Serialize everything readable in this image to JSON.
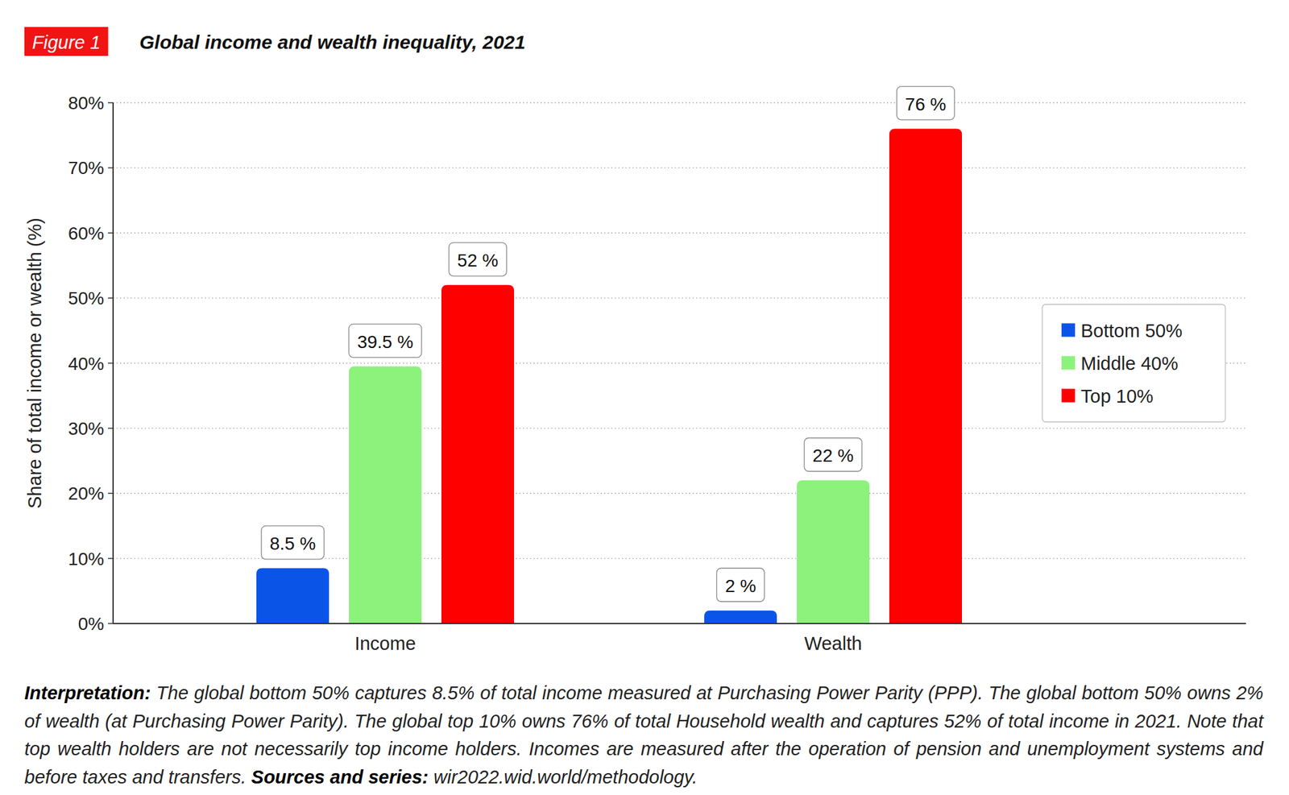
{
  "chart_data": {
    "type": "bar",
    "figure_label": "Figure 1",
    "title": "Global income and wealth inequality, 2021",
    "ylabel": "Share of total income or wealth (%)",
    "categories": [
      "Income",
      "Wealth"
    ],
    "series": [
      {
        "name": "Bottom 50%",
        "color": "#0a55e8",
        "values": [
          8.5,
          2
        ],
        "value_labels": [
          "8.5 %",
          "2 %"
        ]
      },
      {
        "name": "Middle 40%",
        "color": "#8cf27c",
        "values": [
          39.5,
          22
        ],
        "value_labels": [
          "39.5 %",
          "22 %"
        ]
      },
      {
        "name": "Top 10%",
        "color": "#fe0000",
        "values": [
          52,
          76
        ],
        "value_labels": [
          "52 %",
          "76 %"
        ]
      }
    ],
    "ylim": [
      0,
      80
    ],
    "yticks": [
      {
        "value": 0,
        "label": "0%"
      },
      {
        "value": 10,
        "label": "10%"
      },
      {
        "value": 20,
        "label": "20%"
      },
      {
        "value": 30,
        "label": "30%"
      },
      {
        "value": 40,
        "label": "40%"
      },
      {
        "value": 50,
        "label": "50%"
      },
      {
        "value": 60,
        "label": "60%"
      },
      {
        "value": 70,
        "label": "70%"
      },
      {
        "value": 80,
        "label": "80%"
      }
    ],
    "grid": true,
    "legend": "right",
    "data_labels": true,
    "interpretation_label": "Interpretation:",
    "interpretation": "The global bottom 50% captures 8.5% of total income measured at Purchasing Power Parity (PPP). The global bottom 50% owns 2% of wealth (at Purchasing Power Parity). The global top 10% owns 76% of total Household wealth and captures 52% of total income in 2021. Note that top wealth holders are not necessarily top income holders. Incomes are measured after the operation of pension and unemployment systems and before taxes and transfers.",
    "sources_label": "Sources and series:",
    "sources": "wir2022.wid.world/methodology."
  }
}
